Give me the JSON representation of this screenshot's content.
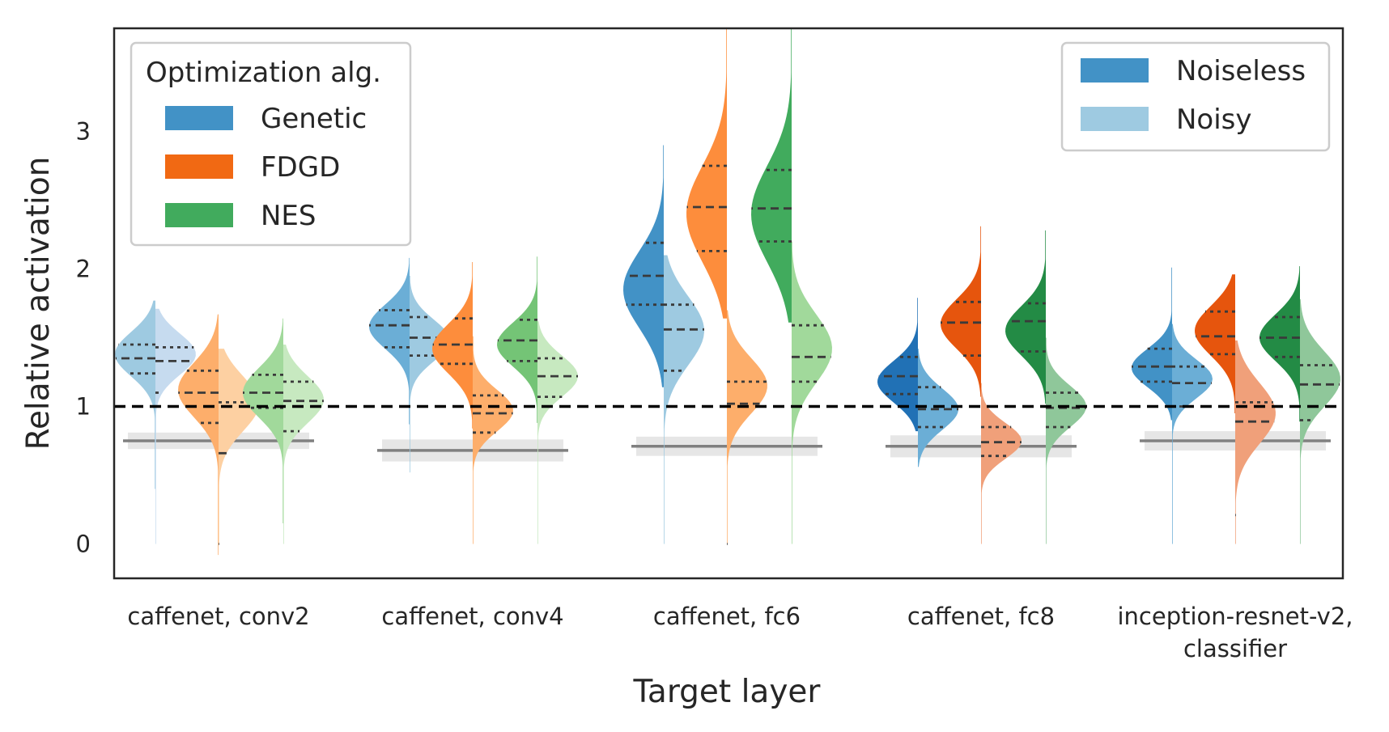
{
  "chart_data": {
    "type": "violin",
    "xlabel": "Target layer",
    "ylabel": "Relative activation",
    "ylim": [
      -0.25,
      3.75
    ],
    "yticks": [
      0,
      1,
      2,
      3
    ],
    "grid": false,
    "reference_line": 1,
    "categories": [
      {
        "lines": [
          "caffenet, conv2"
        ]
      },
      {
        "lines": [
          "caffenet, conv4"
        ]
      },
      {
        "lines": [
          "caffenet, fc6"
        ]
      },
      {
        "lines": [
          "caffenet, fc8"
        ]
      },
      {
        "lines": [
          "inception-resnet-v2,",
          "classifier"
        ]
      }
    ],
    "legends": [
      {
        "title": "Optimization alg.",
        "placement": "top-left",
        "entries": [
          {
            "label": "Genetic",
            "color": "#4292c6"
          },
          {
            "label": "FDGD",
            "color": "#f16913"
          },
          {
            "label": "NES",
            "color": "#41ab5d"
          }
        ]
      },
      {
        "title": "",
        "placement": "top-right",
        "entries": [
          {
            "label": "Noiseless",
            "color": "#4292c6"
          },
          {
            "label": "Noisy",
            "color": "#9ecae1"
          }
        ]
      }
    ],
    "baselines": [
      {
        "category": "caffenet, conv2",
        "value": 0.75,
        "band": [
          0.69,
          0.81
        ]
      },
      {
        "category": "caffenet, conv4",
        "value": 0.68,
        "band": [
          0.6,
          0.76
        ]
      },
      {
        "category": "caffenet, fc6",
        "value": 0.71,
        "band": [
          0.64,
          0.78
        ]
      },
      {
        "category": "caffenet, fc8",
        "value": 0.71,
        "band": [
          0.63,
          0.79
        ]
      },
      {
        "category": "inception-resnet-v2, classifier",
        "value": 0.75,
        "band": [
          0.68,
          0.82
        ]
      }
    ],
    "series": [
      {
        "name": "Genetic",
        "noiseless_colors": [
          "#9ecae1",
          "#6baed6",
          "#4292c6",
          "#2171b5",
          "#4292c6"
        ],
        "noisy_colors": [
          "#c6dbef",
          "#9ecae1",
          "#9ecae1",
          "#6baed6",
          "#6baed6"
        ],
        "violins": [
          {
            "noiseless": {
              "min": 0.4,
              "max": 1.77,
              "q1": 1.24,
              "median": 1.35,
              "q3": 1.45,
              "peak": 1.38,
              "width": 1.0,
              "spread": 0.16
            },
            "noisy": {
              "min": 0.0,
              "max": 1.71,
              "q1": 1.1,
              "median": 1.33,
              "q3": 1.43,
              "peak": 1.38,
              "width": 1.0,
              "spread": 0.15
            }
          },
          {
            "noiseless": {
              "min": 0.87,
              "max": 2.08,
              "q1": 1.43,
              "median": 1.59,
              "q3": 1.7,
              "peak": 1.58,
              "width": 1.0,
              "spread": 0.16
            },
            "noisy": {
              "min": 0.52,
              "max": 1.95,
              "q1": 1.37,
              "median": 1.5,
              "q3": 1.65,
              "peak": 1.48,
              "width": 1.0,
              "spread": 0.15
            }
          },
          {
            "noiseless": {
              "min": 1.14,
              "max": 2.9,
              "q1": 1.74,
              "median": 1.95,
              "q3": 2.19,
              "peak": 1.85,
              "width": 1.0,
              "spread": 0.28
            },
            "noisy": {
              "min": 0.0,
              "max": 2.1,
              "q1": 1.26,
              "median": 1.56,
              "q3": 1.74,
              "peak": 1.55,
              "width": 1.0,
              "spread": 0.25
            }
          },
          {
            "noiseless": {
              "min": 0.82,
              "max": 1.79,
              "q1": 1.09,
              "median": 1.22,
              "q3": 1.36,
              "peak": 1.18,
              "width": 1.0,
              "spread": 0.15
            },
            "noisy": {
              "min": 0.56,
              "max": 1.42,
              "q1": 0.85,
              "median": 0.98,
              "q3": 1.14,
              "peak": 0.98,
              "width": 1.0,
              "spread": 0.15
            }
          },
          {
            "noiseless": {
              "min": 0.9,
              "max": 2.01,
              "q1": 1.18,
              "median": 1.29,
              "q3": 1.42,
              "peak": 1.28,
              "width": 1.0,
              "spread": 0.14
            },
            "noisy": {
              "min": 0.0,
              "max": 1.6,
              "q1": 1.0,
              "median": 1.17,
              "q3": 1.29,
              "peak": 1.2,
              "width": 1.0,
              "spread": 0.14
            }
          }
        ]
      },
      {
        "name": "FDGD",
        "noiseless_colors": [
          "#fdae6b",
          "#fd8d3c",
          "#fd8d3c",
          "#e6550d",
          "#e6550d"
        ],
        "noisy_colors": [
          "#fdd0a2",
          "#fdae6b",
          "#fdae6b",
          "#f0a07a",
          "#f0a07a"
        ],
        "violins": [
          {
            "noiseless": {
              "min": -0.08,
              "max": 1.67,
              "q1": 0.88,
              "median": 1.1,
              "q3": 1.26,
              "peak": 1.12,
              "width": 1.0,
              "spread": 0.2
            },
            "noisy": {
              "min": 0.0,
              "max": 1.42,
              "q1": 0.0,
              "median": 0.66,
              "q3": 1.03,
              "peak": 1.02,
              "width": 1.0,
              "spread": 0.2
            }
          },
          {
            "noiseless": {
              "min": 0.84,
              "max": 2.05,
              "q1": 1.31,
              "median": 1.45,
              "q3": 1.64,
              "peak": 1.42,
              "width": 1.0,
              "spread": 0.18
            },
            "noisy": {
              "min": 0.0,
              "max": 1.51,
              "q1": 0.81,
              "median": 0.95,
              "q3": 1.08,
              "peak": 0.97,
              "width": 1.0,
              "spread": 0.15
            }
          },
          {
            "noiseless": {
              "min": 1.64,
              "max": 3.75,
              "q1": 2.13,
              "median": 2.45,
              "q3": 2.75,
              "peak": 2.4,
              "width": 1.0,
              "spread": 0.35
            },
            "noisy": {
              "min": 0.0,
              "max": 1.7,
              "q1": 0.0,
              "median": 1.02,
              "q3": 1.18,
              "peak": 1.15,
              "width": 1.0,
              "spread": 0.2
            }
          },
          {
            "noiseless": {
              "min": 1.07,
              "max": 2.31,
              "q1": 1.37,
              "median": 1.61,
              "q3": 1.76,
              "peak": 1.6,
              "width": 1.0,
              "spread": 0.18
            },
            "noisy": {
              "min": 0.0,
              "max": 1.17,
              "q1": 0.64,
              "median": 0.74,
              "q3": 0.85,
              "peak": 0.75,
              "width": 1.0,
              "spread": 0.13
            }
          },
          {
            "noiseless": {
              "min": 0.95,
              "max": 1.96,
              "q1": 1.38,
              "median": 1.51,
              "q3": 1.69,
              "peak": 1.55,
              "width": 1.0,
              "spread": 0.18
            },
            "noisy": {
              "min": 0.0,
              "max": 1.48,
              "q1": 0.21,
              "median": 0.89,
              "q3": 1.03,
              "peak": 0.95,
              "width": 1.0,
              "spread": 0.22
            }
          }
        ]
      },
      {
        "name": "NES",
        "noiseless_colors": [
          "#a1d99b",
          "#74c476",
          "#41ab5d",
          "#238b45",
          "#238b45"
        ],
        "noisy_colors": [
          "#c7e9c0",
          "#c7e9c0",
          "#a1d99b",
          "#8fc79a",
          "#8fc79a"
        ],
        "violins": [
          {
            "noiseless": {
              "min": 0.15,
              "max": 1.64,
              "q1": 0.99,
              "median": 1.1,
              "q3": 1.23,
              "peak": 1.1,
              "width": 1.0,
              "spread": 0.18
            },
            "noisy": {
              "min": 0.0,
              "max": 1.45,
              "q1": 0.82,
              "median": 1.04,
              "q3": 1.18,
              "peak": 1.05,
              "width": 1.0,
              "spread": 0.17
            }
          },
          {
            "noiseless": {
              "min": 0.88,
              "max": 2.09,
              "q1": 1.33,
              "median": 1.48,
              "q3": 1.63,
              "peak": 1.45,
              "width": 1.0,
              "spread": 0.16
            },
            "noisy": {
              "min": 0.0,
              "max": 1.62,
              "q1": 1.07,
              "median": 1.22,
              "q3": 1.35,
              "peak": 1.22,
              "width": 1.0,
              "spread": 0.15
            }
          },
          {
            "noiseless": {
              "min": 1.61,
              "max": 3.75,
              "q1": 2.2,
              "median": 2.44,
              "q3": 2.72,
              "peak": 2.4,
              "width": 1.0,
              "spread": 0.35
            },
            "noisy": {
              "min": 0.0,
              "max": 2.2,
              "q1": 1.18,
              "median": 1.36,
              "q3": 1.59,
              "peak": 1.42,
              "width": 1.0,
              "spread": 0.25
            }
          },
          {
            "noiseless": {
              "min": 1.02,
              "max": 2.28,
              "q1": 1.4,
              "median": 1.62,
              "q3": 1.75,
              "peak": 1.55,
              "width": 1.0,
              "spread": 0.18
            },
            "noisy": {
              "min": 0.0,
              "max": 1.5,
              "q1": 0.85,
              "median": 0.99,
              "q3": 1.1,
              "peak": 1.0,
              "width": 1.0,
              "spread": 0.15
            }
          },
          {
            "noiseless": {
              "min": 0.89,
              "max": 2.02,
              "q1": 1.36,
              "median": 1.5,
              "q3": 1.65,
              "peak": 1.5,
              "width": 1.0,
              "spread": 0.17
            },
            "noisy": {
              "min": 0.0,
              "max": 1.78,
              "q1": 0.9,
              "median": 1.16,
              "q3": 1.3,
              "peak": 1.2,
              "width": 1.0,
              "spread": 0.2
            }
          }
        ]
      }
    ]
  }
}
